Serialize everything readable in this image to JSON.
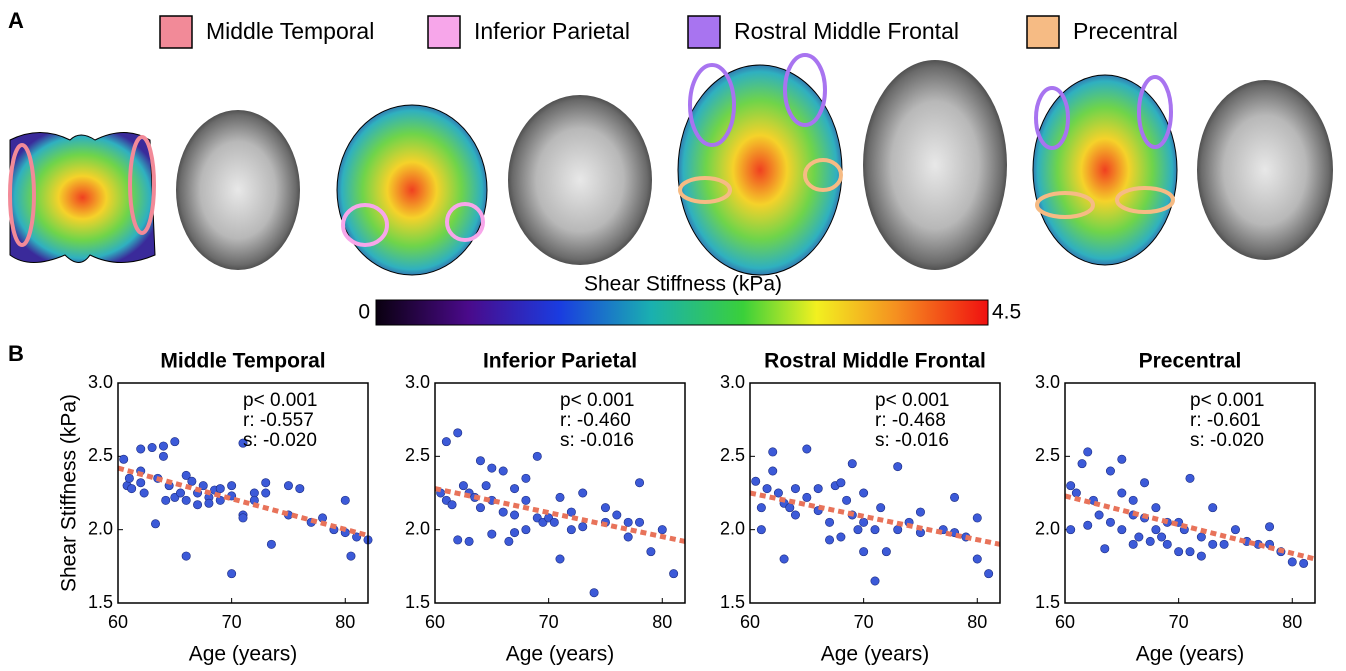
{
  "figure": {
    "panel_a_label": "A",
    "panel_b_label": "B",
    "legend": [
      {
        "name": "Middle Temporal",
        "color": "#f28a98"
      },
      {
        "name": "Inferior Parietal",
        "color": "#f7a6ea"
      },
      {
        "name": "Rostral Middle Frontal",
        "color": "#a874f0"
      },
      {
        "name": "Precentral",
        "color": "#f6bb84"
      }
    ],
    "colorbar": {
      "label": "Shear Stiffness (kPa)",
      "clim": [
        0,
        4.5
      ],
      "ticks": [
        0,
        4.5
      ]
    }
  },
  "chart_data": [
    {
      "type": "scatter",
      "title": "Middle Temporal",
      "xlabel": "Age (years)",
      "ylabel": "Shear Stiffness (kPa)",
      "annotations": [
        "p< 0.001",
        "r: -0.557",
        "s: -0.020"
      ],
      "color": "#3c5ad8",
      "x": [
        60.5,
        60.8,
        61,
        61.2,
        62,
        62,
        62,
        62.3,
        63,
        63.3,
        63.5,
        64,
        64,
        64.2,
        64.5,
        65,
        65,
        65.5,
        66,
        66,
        66,
        66.5,
        67,
        67,
        67.5,
        68,
        68,
        68.5,
        69,
        69,
        70,
        70,
        70,
        71,
        71,
        71,
        72,
        72,
        73,
        73,
        73.5,
        75,
        75,
        76,
        77,
        78,
        79,
        80,
        80,
        80.5,
        81,
        82
      ],
      "y": [
        2.48,
        2.3,
        2.35,
        2.28,
        2.55,
        2.4,
        2.32,
        2.25,
        2.56,
        2.04,
        2.35,
        2.57,
        2.5,
        2.2,
        2.3,
        2.6,
        2.22,
        2.25,
        2.37,
        2.2,
        1.82,
        2.33,
        2.25,
        2.17,
        2.3,
        2.22,
        2.18,
        2.27,
        2.28,
        2.2,
        2.3,
        2.23,
        1.7,
        2.59,
        2.1,
        2.08,
        2.25,
        2.2,
        2.32,
        2.25,
        1.9,
        2.3,
        2.1,
        2.28,
        2.05,
        2.08,
        2.0,
        2.2,
        1.98,
        1.82,
        1.95,
        1.93
      ],
      "trend": {
        "x": [
          60,
          82
        ],
        "y": [
          2.42,
          1.96
        ],
        "color": "#e8735a"
      },
      "xlim": [
        60,
        82
      ],
      "ylim": [
        1.5,
        3.0
      ],
      "xticks": [
        60,
        70,
        80
      ],
      "yticks": [
        1.5,
        {
          "value": 2,
          "label": "2.0"
        },
        2.5,
        {
          "value": 3,
          "label": "3.0"
        }
      ]
    },
    {
      "type": "scatter",
      "title": "Inferior Parietal",
      "xlabel": "Age (years)",
      "annotations": [
        "p< 0.001",
        "r: -0.460",
        "s: -0.016"
      ],
      "color": "#3c5ad8",
      "x": [
        60.5,
        61,
        61,
        61.5,
        62,
        62,
        62.5,
        63,
        63,
        63.5,
        64,
        64,
        64.5,
        65,
        65,
        65,
        66,
        66,
        66.5,
        67,
        67,
        67,
        68,
        68,
        68,
        69,
        69,
        69.5,
        70,
        70.5,
        71,
        71,
        72,
        72,
        73,
        73,
        74,
        75,
        75,
        76,
        77,
        77,
        78,
        78,
        79,
        80,
        81
      ],
      "y": [
        2.25,
        2.6,
        2.2,
        2.17,
        2.66,
        1.93,
        2.3,
        2.25,
        1.92,
        2.22,
        2.47,
        2.15,
        2.3,
        2.42,
        2.2,
        1.97,
        2.4,
        2.12,
        1.92,
        2.28,
        2.1,
        1.98,
        2.35,
        2.2,
        2.0,
        2.5,
        2.08,
        2.05,
        2.08,
        2.05,
        2.22,
        1.8,
        2.12,
        2.0,
        2.25,
        2.02,
        1.57,
        2.15,
        2.05,
        2.1,
        2.05,
        1.95,
        2.32,
        2.05,
        1.85,
        2.0,
        1.7
      ],
      "trend": {
        "x": [
          60,
          82
        ],
        "y": [
          2.28,
          1.92
        ],
        "color": "#e8735a"
      },
      "xlim": [
        60,
        82
      ],
      "ylim": [
        1.5,
        3.0
      ],
      "xticks": [
        60,
        70,
        80
      ],
      "yticks": [
        1.5,
        {
          "value": 2,
          "label": "2.0"
        },
        2.5,
        {
          "value": 3,
          "label": "3.0"
        }
      ]
    },
    {
      "type": "scatter",
      "title": "Rostral Middle Frontal",
      "xlabel": "Age (years)",
      "annotations": [
        "p< 0.001",
        "r: -0.468",
        "s: -0.016"
      ],
      "color": "#3c5ad8",
      "x": [
        60.5,
        61,
        61,
        61.5,
        62,
        62,
        62.5,
        63,
        63,
        63.5,
        64,
        64,
        65,
        65,
        66,
        66,
        67,
        67,
        67.5,
        68,
        68,
        68.5,
        69,
        69,
        69.5,
        70,
        70,
        70,
        71,
        71,
        71.5,
        72,
        73,
        73,
        74,
        75,
        75,
        77,
        78,
        78,
        79,
        80,
        80,
        81
      ],
      "y": [
        2.33,
        2.0,
        2.15,
        2.28,
        2.53,
        2.4,
        2.25,
        2.18,
        1.8,
        2.15,
        2.28,
        2.1,
        2.55,
        2.22,
        2.28,
        2.13,
        2.05,
        1.93,
        2.3,
        2.32,
        1.95,
        2.2,
        2.45,
        2.1,
        2.0,
        2.25,
        2.05,
        1.85,
        2.0,
        1.65,
        2.15,
        1.85,
        2.43,
        2.0,
        2.05,
        2.12,
        1.98,
        2.0,
        2.22,
        1.98,
        1.95,
        2.08,
        1.8,
        1.7
      ],
      "trend": {
        "x": [
          60,
          82
        ],
        "y": [
          2.25,
          1.9
        ],
        "color": "#e8735a"
      },
      "xlim": [
        60,
        82
      ],
      "ylim": [
        1.5,
        3.0
      ],
      "xticks": [
        60,
        70,
        80
      ],
      "yticks": [
        1.5,
        {
          "value": 2,
          "label": "2.0"
        },
        2.5,
        {
          "value": 3,
          "label": "3.0"
        }
      ]
    },
    {
      "type": "scatter",
      "title": "Precentral",
      "xlabel": "Age (years)",
      "annotations": [
        "p< 0.001",
        "r: -0.601",
        "s: -0.020"
      ],
      "color": "#3c5ad8",
      "x": [
        60.5,
        60.5,
        61,
        61.5,
        62,
        62,
        62.5,
        63,
        63.5,
        64,
        64,
        65,
        65,
        65,
        66,
        66,
        66,
        66.5,
        67,
        67,
        67.5,
        68,
        68,
        68.5,
        69,
        69,
        70,
        70,
        70.5,
        71,
        71,
        72,
        72,
        73,
        73,
        74,
        75,
        76,
        77,
        78,
        78,
        79,
        80,
        81
      ],
      "y": [
        2.3,
        2.0,
        2.25,
        2.45,
        2.53,
        2.03,
        2.2,
        2.1,
        1.87,
        2.4,
        2.05,
        2.48,
        2.25,
        2.0,
        2.2,
        2.1,
        1.9,
        1.95,
        2.32,
        2.08,
        1.92,
        2.15,
        2.0,
        1.95,
        2.05,
        1.9,
        2.05,
        1.85,
        2.0,
        2.35,
        1.85,
        1.95,
        1.82,
        2.15,
        1.9,
        1.9,
        2.0,
        1.92,
        1.9,
        2.02,
        1.9,
        1.85,
        1.78,
        1.77
      ],
      "trend": {
        "x": [
          60,
          82
        ],
        "y": [
          2.23,
          1.8
        ],
        "color": "#e8735a"
      },
      "xlim": [
        60,
        82
      ],
      "ylim": [
        1.5,
        3.0
      ],
      "xticks": [
        60,
        70,
        80
      ],
      "yticks": [
        1.5,
        {
          "value": 2,
          "label": "2.0"
        },
        2.5,
        {
          "value": 3,
          "label": "3.0"
        }
      ]
    }
  ]
}
